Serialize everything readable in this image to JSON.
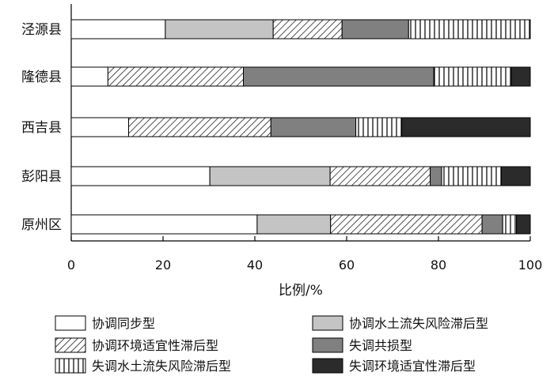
{
  "chart_data": {
    "type": "bar",
    "orientation": "horizontal",
    "stacked": true,
    "categories": [
      "泾源县",
      "隆德县",
      "西吉县",
      "彭阳县",
      "原州区"
    ],
    "xlabel": "比例/%",
    "ylabel": "",
    "xlim": [
      0,
      100
    ],
    "xticks": [
      "0",
      "20",
      "40",
      "60",
      "80",
      "100"
    ],
    "legend_position": "bottom",
    "series": [
      {
        "name": "协调同步型",
        "pattern": "white",
        "values": [
          20.5,
          8,
          12.5,
          30.2,
          40.5
        ]
      },
      {
        "name": "协调水土流失风险滞后型",
        "pattern": "light-gray",
        "values": [
          23.5,
          0,
          0,
          26.2,
          16
        ]
      },
      {
        "name": "协调环境适宜性滞后型",
        "pattern": "diagonal-hatch",
        "values": [
          15,
          29.5,
          31,
          21.8,
          33
        ]
      },
      {
        "name": "失调共损型",
        "pattern": "dark-gray",
        "values": [
          14.5,
          41.5,
          18.5,
          2.5,
          4.5
        ]
      },
      {
        "name": "失调水土流失风险滞后型",
        "pattern": "vertical-stripes",
        "values": [
          26.5,
          16.9,
          10,
          13,
          3
        ]
      },
      {
        "name": "失调环境适宜性滞后型",
        "pattern": "black",
        "values": [
          0,
          4.1,
          28,
          6.3,
          3
        ]
      }
    ]
  }
}
